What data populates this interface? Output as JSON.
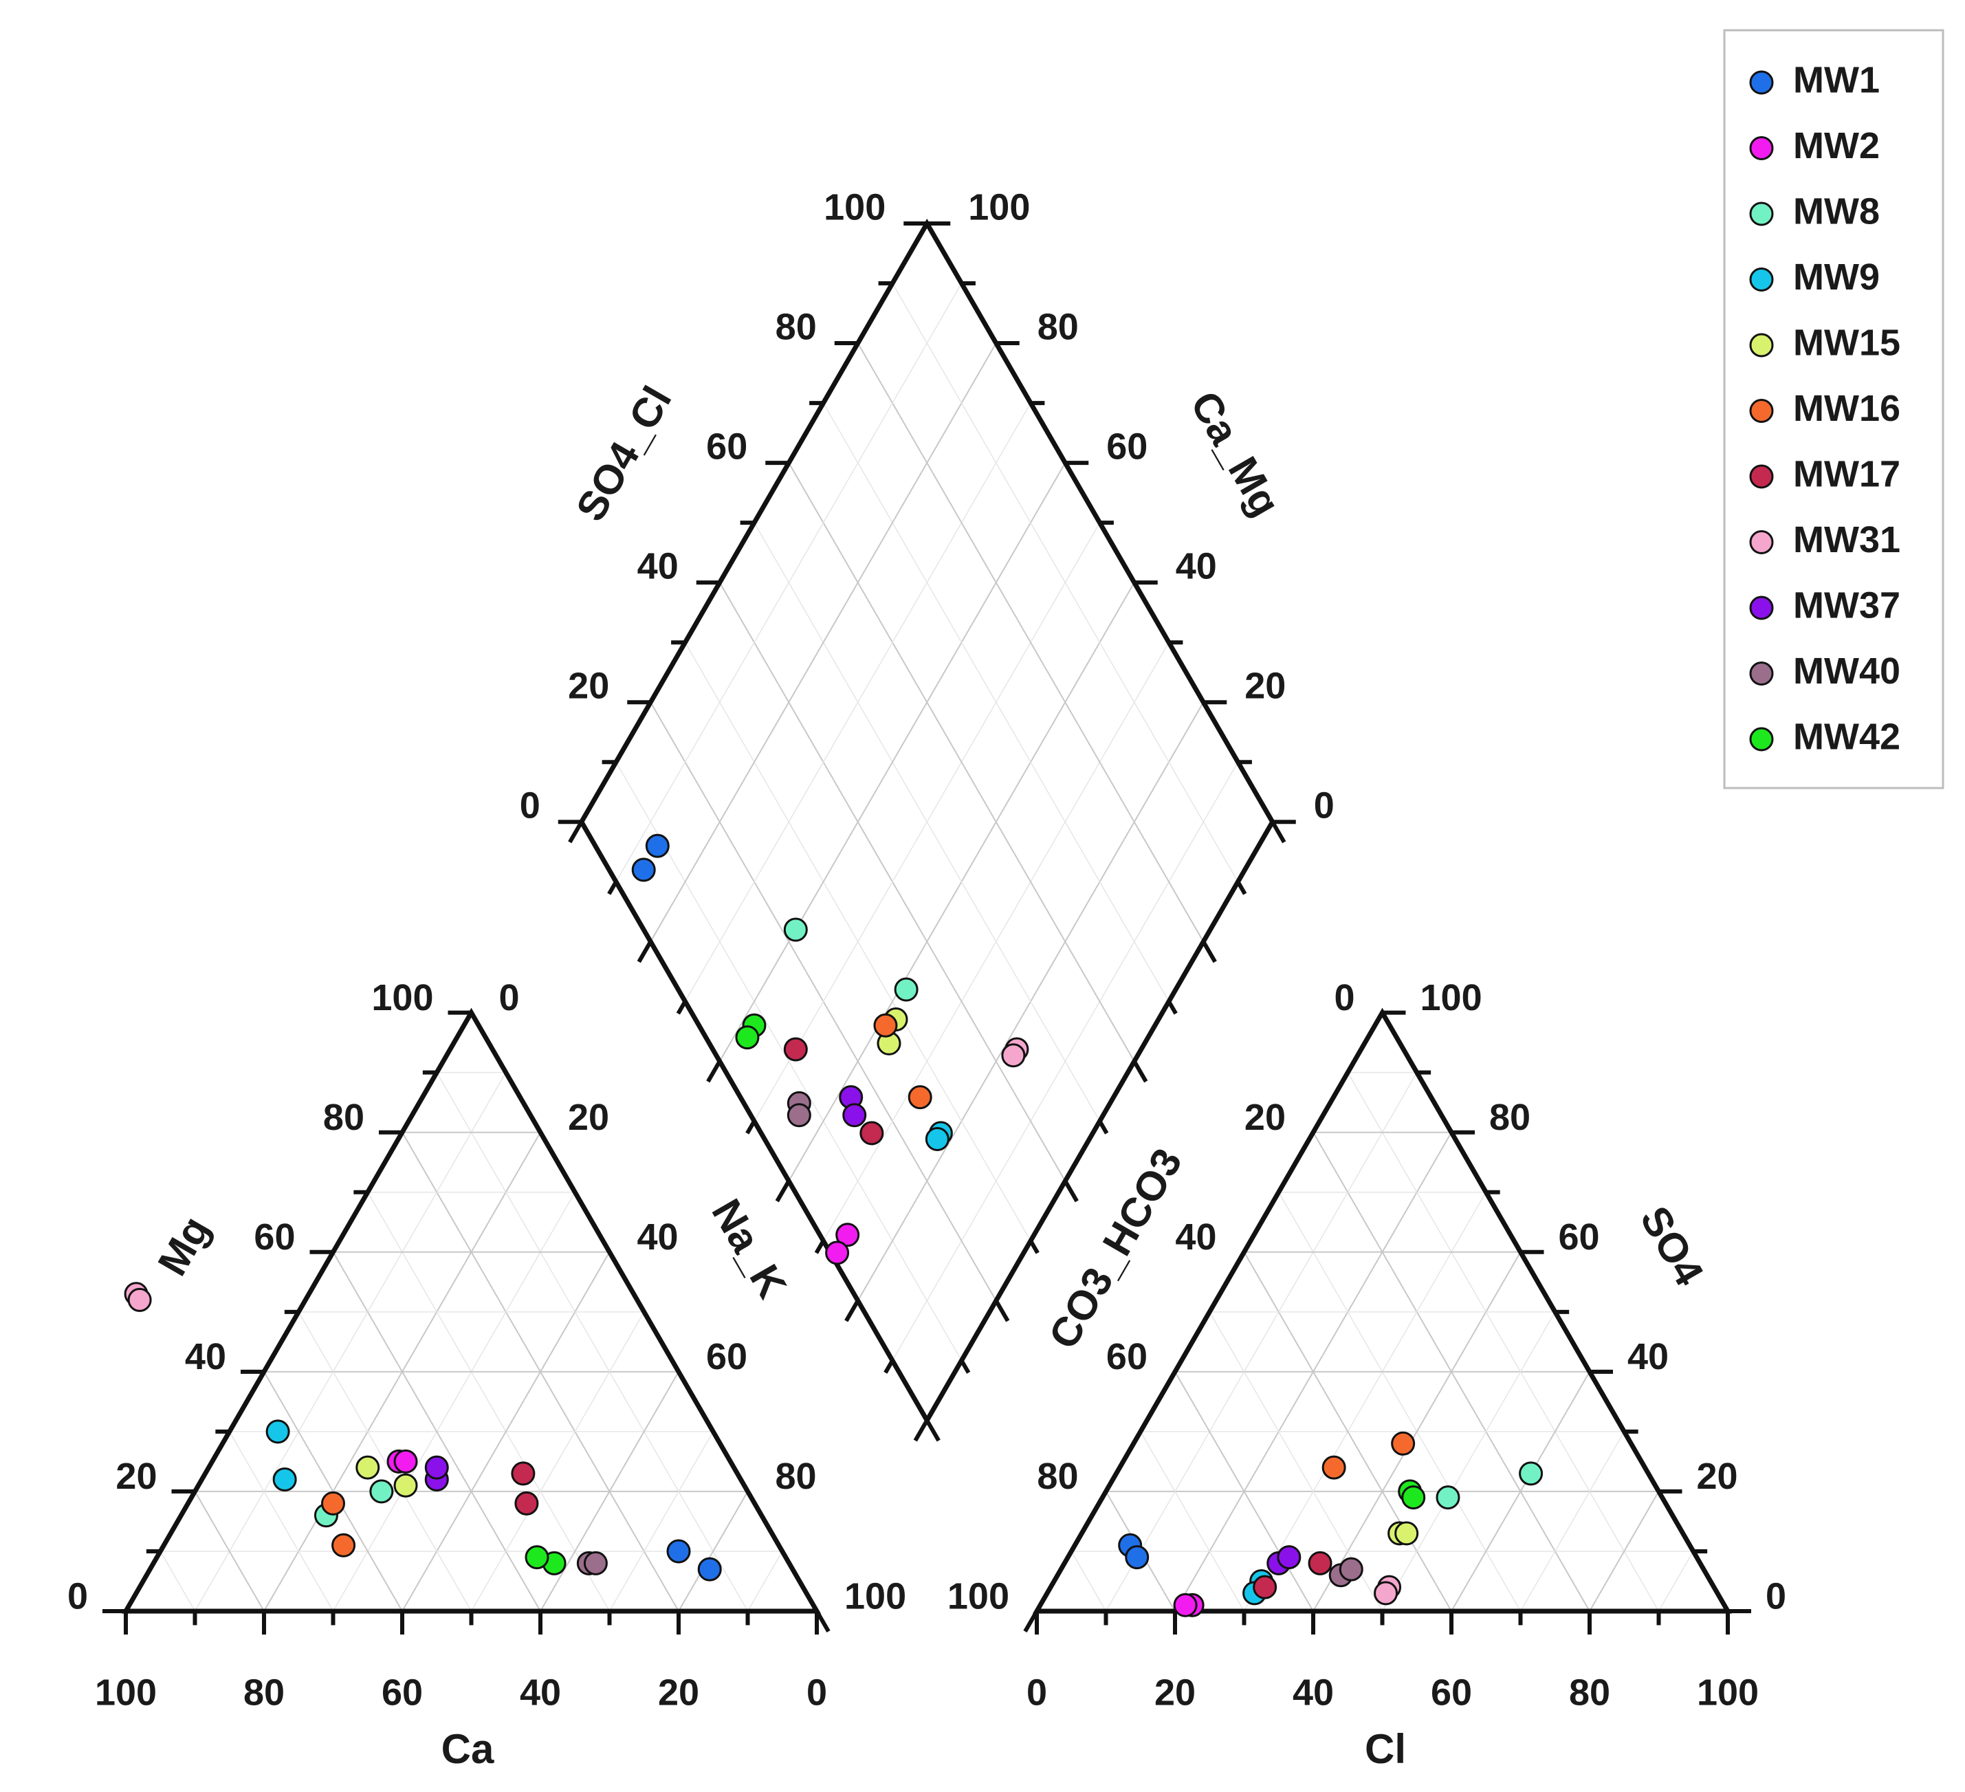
{
  "chart_data": {
    "type": "scatter",
    "subtype": "piper-trilinear",
    "legend_position": "top-right",
    "grid": true,
    "axis_ranges": [
      0,
      100
    ],
    "tick_values": [
      0,
      20,
      40,
      60,
      80,
      100
    ],
    "tick_labels": [
      "0",
      "20",
      "40",
      "60",
      "80",
      "100"
    ],
    "axis_labels": {
      "cation_bottom": "Ca",
      "cation_left": "Mg",
      "cation_right": "Na_K",
      "anion_bottom": "Cl",
      "anion_left": "CO3_HCO3",
      "anion_right": "SO4",
      "diamond_left": "SO4_Cl",
      "diamond_right": "Ca_Mg"
    },
    "series": [
      {
        "name": "MW1",
        "color": "#1f6fe8",
        "cation": [
          [
            12,
            7
          ],
          [
            15,
            10
          ]
        ],
        "anion": [
          [
            8,
            11
          ],
          [
            10,
            9
          ]
        ],
        "diamond": [
          [
            87,
            9
          ],
          [
            87,
            5
          ]
        ]
      },
      {
        "name": "MW2",
        "color": "#f21cf0",
        "cation": [
          [
            48,
            25
          ],
          [
            47,
            25
          ]
        ],
        "anion": [
          [
            22,
            1
          ],
          [
            21,
            1
          ]
        ],
        "diamond": [
          [
            27,
            4
          ],
          [
            27,
            1
          ]
        ]
      },
      {
        "name": "MW8",
        "color": "#72f2c4",
        "cation": [
          [
            63,
            16
          ],
          [
            53,
            20
          ]
        ],
        "anion": [
          [
            60,
            23
          ],
          [
            50,
            19
          ]
        ],
        "diamond": [
          [
            39,
            33
          ],
          [
            60,
            22
          ]
        ]
      },
      {
        "name": "MW9",
        "color": "#15c6ea",
        "cation": [
          [
            66,
            22
          ],
          [
            63,
            30
          ]
        ],
        "anion": [
          [
            30,
            5
          ],
          [
            30,
            3
          ]
        ],
        "diamond": [
          [
            22,
            26
          ],
          [
            22,
            25
          ]
        ]
      },
      {
        "name": "MW15",
        "color": "#d9f26e",
        "cation": [
          [
            53,
            24
          ],
          [
            49,
            21
          ]
        ],
        "anion": [
          [
            46,
            13
          ],
          [
            47,
            13
          ]
        ],
        "diamond": [
          [
            38,
            29
          ],
          [
            37,
            26
          ]
        ]
      },
      {
        "name": "MW16",
        "color": "#f56a2c",
        "cation": [
          [
            61,
            18
          ],
          [
            63,
            11
          ]
        ],
        "anion": [
          [
            31,
            24
          ],
          [
            39,
            28
          ]
        ],
        "diamond": [
          [
            39,
            27
          ],
          [
            28,
            26
          ]
        ]
      },
      {
        "name": "MW17",
        "color": "#c4294f",
        "cation": [
          [
            31,
            23
          ],
          [
            33,
            18
          ]
        ],
        "anion": [
          [
            31,
            4
          ],
          [
            37,
            8
          ]
        ],
        "diamond": [
          [
            50,
            12
          ],
          [
            32,
            16
          ]
        ]
      },
      {
        "name": "MW31",
        "color": "#f5a6cc",
        "cation": [
          [
            72,
            53
          ],
          [
            72,
            52
          ]
        ],
        "anion": [
          [
            49,
            4
          ],
          [
            49,
            3
          ]
        ],
        "diamond": [
          [
            18,
            44
          ],
          [
            18,
            43
          ]
        ]
      },
      {
        "name": "MW37",
        "color": "#8a11ea",
        "cation": [
          [
            44,
            22
          ],
          [
            43,
            24
          ]
        ],
        "anion": [
          [
            31,
            8
          ],
          [
            32,
            9
          ]
        ],
        "diamond": [
          [
            38,
            16
          ],
          [
            36,
            15
          ]
        ]
      },
      {
        "name": "MW40",
        "color": "#9b6e8c",
        "cation": [
          [
            29,
            8
          ],
          [
            28,
            8
          ]
        ],
        "anion": [
          [
            41,
            6
          ],
          [
            42,
            7
          ]
        ],
        "diamond": [
          [
            45,
            8
          ],
          [
            44,
            7
          ]
        ]
      },
      {
        "name": "MW42",
        "color": "#1de81d",
        "cation": [
          [
            34,
            8
          ],
          [
            36,
            9
          ]
        ],
        "anion": [
          [
            44,
            20
          ],
          [
            45,
            19
          ]
        ],
        "diamond": [
          [
            58,
            8
          ],
          [
            58,
            6
          ]
        ]
      }
    ]
  }
}
